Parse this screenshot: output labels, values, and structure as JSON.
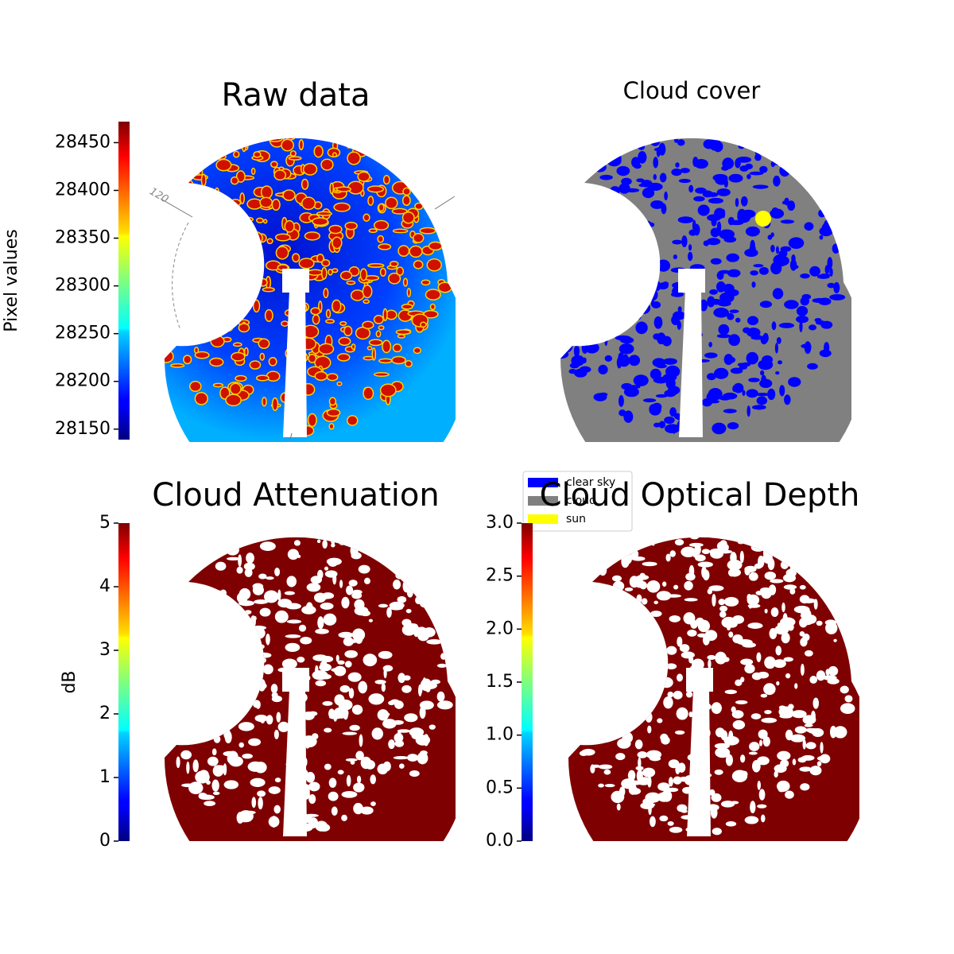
{
  "chart_data": [
    {
      "type": "image",
      "title": "Raw data",
      "annotation": "120",
      "colorbar": {
        "label": "Pixel values",
        "colormap": "jet",
        "lim": [
          28139,
          28472
        ],
        "ticks": [
          28150,
          28200,
          28250,
          28300,
          28350,
          28400,
          28450
        ]
      }
    },
    {
      "type": "image",
      "title": "Cloud cover",
      "legend": {
        "corner": "lower left",
        "entries": [
          {
            "name": "clear sky",
            "color": "#0000ff"
          },
          {
            "name": "cloud",
            "color": "#808080"
          },
          {
            "name": "sun",
            "color": "#ffff00"
          }
        ]
      }
    },
    {
      "type": "image",
      "title": "Cloud Attenuation",
      "colorbar": {
        "label": "dB",
        "colormap": "jet",
        "lim": [
          0,
          5
        ],
        "ticks": [
          0,
          1,
          2,
          3,
          4,
          5
        ]
      }
    },
    {
      "type": "image",
      "title": "Cloud Optical Depth",
      "colorbar": {
        "colormap": "jet",
        "lim": [
          0,
          3
        ],
        "ticks": [
          {
            "value": 0,
            "label": "0.0"
          },
          0.5,
          {
            "value": 1,
            "label": "1.0"
          },
          1.5,
          {
            "value": 2,
            "label": "2.0"
          },
          2.5,
          {
            "value": 3,
            "label": "3.0"
          }
        ]
      }
    }
  ]
}
